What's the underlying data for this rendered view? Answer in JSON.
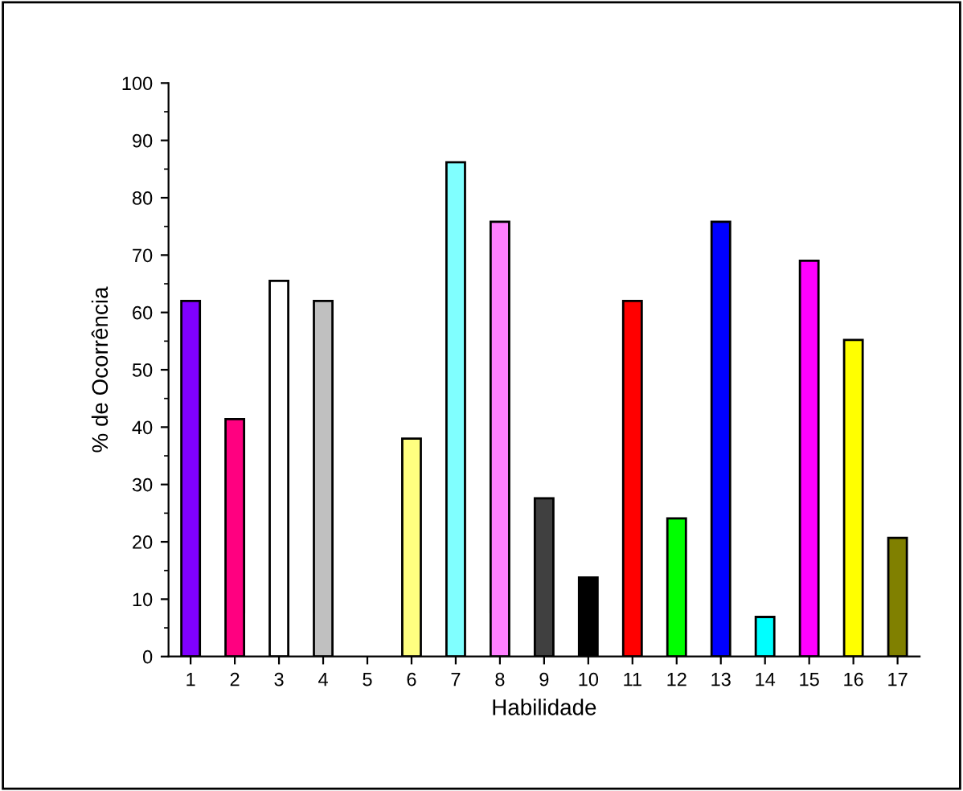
{
  "chart_data": {
    "type": "bar",
    "xlabel": "Habilidade",
    "ylabel": "% de Ocorrência",
    "categories": [
      "1",
      "2",
      "3",
      "4",
      "5",
      "6",
      "7",
      "8",
      "9",
      "10",
      "11",
      "12",
      "13",
      "14",
      "15",
      "16",
      "17"
    ],
    "values": [
      62.0,
      41.4,
      65.5,
      62.0,
      0,
      38.0,
      86.2,
      75.8,
      27.6,
      13.8,
      62.0,
      24.1,
      75.8,
      6.9,
      69.0,
      55.2,
      20.7
    ],
    "colors": [
      "#8000ff",
      "#ff0080",
      "#ffffff",
      "#c0c0c0",
      "#ffffff",
      "#ffff80",
      "#80ffff",
      "#ff80ff",
      "#404040",
      "#000000",
      "#ff0000",
      "#00ff00",
      "#0000ff",
      "#00ffff",
      "#ff00ff",
      "#ffff00",
      "#808000"
    ],
    "ylim": [
      0,
      100
    ],
    "yticks": [
      0,
      10,
      20,
      30,
      40,
      50,
      60,
      70,
      80,
      90,
      100
    ],
    "grid": false
  }
}
